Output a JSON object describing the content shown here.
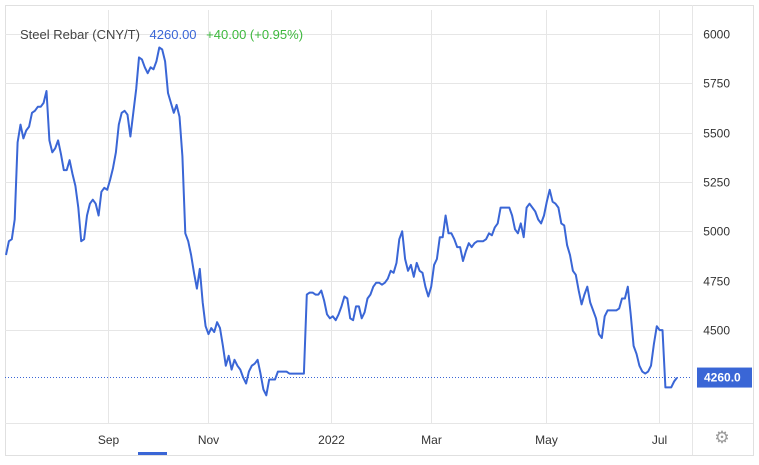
{
  "header": {
    "name": "Steel Rebar (CNY/T)",
    "price": "4260.00",
    "change": "+40.00 (+0.95%)"
  },
  "colors": {
    "line": "#3a66d6",
    "grid": "#e6e6e6",
    "price_up": "#3db83d",
    "last_badge": "#3a66d6"
  },
  "icons": {
    "settings": "gear-icon"
  },
  "chart_data": {
    "type": "line",
    "title": "Steel Rebar (CNY/T)",
    "xlabel": "",
    "ylabel": "",
    "ylim": [
      4030,
      6120
    ],
    "y_ticks": [
      4500,
      4750,
      5000,
      5250,
      5500,
      5750,
      6000
    ],
    "x_ticks": [
      "Sep",
      "Nov",
      "2022",
      "Mar",
      "May",
      "Jul"
    ],
    "grid": true,
    "last_value_label": "4260.0",
    "last_value": 4260.0,
    "series": [
      {
        "name": "Steel Rebar",
        "values": [
          4880,
          4950,
          4960,
          5060,
          5450,
          5540,
          5470,
          5510,
          5530,
          5600,
          5610,
          5630,
          5630,
          5650,
          5710,
          5460,
          5400,
          5420,
          5460,
          5390,
          5310,
          5310,
          5360,
          5290,
          5230,
          5120,
          4950,
          4960,
          5080,
          5140,
          5160,
          5140,
          5080,
          5200,
          5220,
          5210,
          5260,
          5320,
          5400,
          5540,
          5600,
          5610,
          5590,
          5480,
          5600,
          5720,
          5880,
          5870,
          5830,
          5800,
          5830,
          5820,
          5860,
          5930,
          5920,
          5860,
          5700,
          5650,
          5600,
          5640,
          5580,
          5380,
          4990,
          4950,
          4880,
          4790,
          4710,
          4810,
          4640,
          4520,
          4480,
          4510,
          4490,
          4540,
          4510,
          4420,
          4320,
          4370,
          4300,
          4350,
          4320,
          4300,
          4260,
          4230,
          4290,
          4320,
          4330,
          4350,
          4280,
          4200,
          4170,
          4250,
          4250,
          4250,
          4290,
          4290,
          4290,
          4290,
          4280,
          4280,
          4280,
          4280,
          4280,
          4280,
          4680,
          4690,
          4690,
          4680,
          4680,
          4700,
          4650,
          4580,
          4560,
          4570,
          4550,
          4580,
          4620,
          4670,
          4660,
          4560,
          4550,
          4620,
          4620,
          4560,
          4590,
          4660,
          4680,
          4720,
          4740,
          4740,
          4730,
          4740,
          4760,
          4800,
          4790,
          4840,
          4960,
          5000,
          4860,
          4800,
          4830,
          4770,
          4840,
          4800,
          4790,
          4720,
          4670,
          4720,
          4830,
          4860,
          4970,
          4970,
          5080,
          4990,
          4990,
          4960,
          4920,
          4920,
          4850,
          4900,
          4940,
          4920,
          4940,
          4950,
          4950,
          4950,
          4960,
          4990,
          4980,
          5020,
          5040,
          5120,
          5120,
          5120,
          5120,
          5080,
          5010,
          4990,
          5040,
          4970,
          5120,
          5140,
          5120,
          5100,
          5060,
          5040,
          5080,
          5150,
          5210,
          5150,
          5140,
          5120,
          5040,
          5030,
          4930,
          4880,
          4800,
          4780,
          4700,
          4630,
          4680,
          4720,
          4640,
          4600,
          4560,
          4480,
          4460,
          4570,
          4600,
          4600,
          4600,
          4600,
          4610,
          4660,
          4660,
          4720,
          4580,
          4420,
          4380,
          4320,
          4290,
          4280,
          4290,
          4320,
          4430,
          4520,
          4500,
          4500,
          4210,
          4210,
          4210,
          4240,
          4260
        ]
      }
    ]
  }
}
